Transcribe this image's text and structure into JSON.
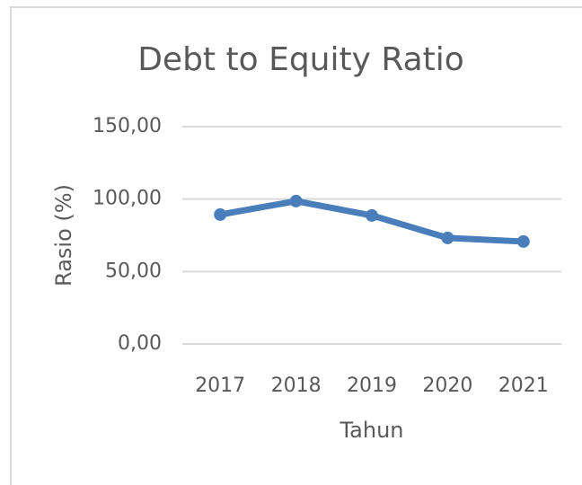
{
  "chart_data": {
    "type": "line",
    "title": "Debt to Equity Ratio",
    "x_label": "Tahun",
    "y_label": "Rasio (%)",
    "categories": [
      "2017",
      "2018",
      "2019",
      "2020",
      "2021"
    ],
    "series": [
      {
        "name": "Debt to Equity Ratio",
        "color": "#4a7ebb",
        "values": [
          89.3,
          98.6,
          88.7,
          73.2,
          70.7
        ]
      }
    ],
    "ylim": [
      0,
      150
    ],
    "yticks": [
      {
        "value": 0,
        "label": "0,00"
      },
      {
        "value": 50,
        "label": "50,00"
      },
      {
        "value": 100,
        "label": "100,00"
      },
      {
        "value": 150,
        "label": "150,00"
      }
    ],
    "grid": true,
    "legend": false
  }
}
